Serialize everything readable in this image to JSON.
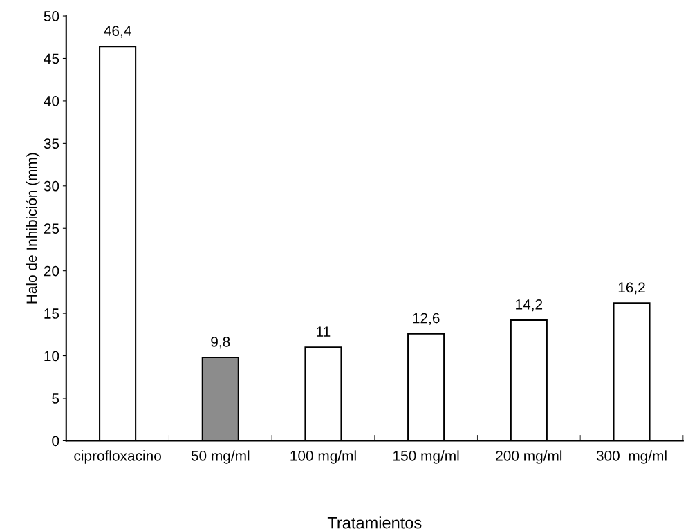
{
  "chart_data": {
    "type": "bar",
    "xlabel": "Tratamientos",
    "ylabel": "Halo de Inhibición (mm)",
    "categories": [
      "ciprofloxacino",
      "50 mg/ml",
      "100 mg/ml",
      "150 mg/ml",
      "200 mg/ml",
      "300  mg/ml"
    ],
    "values": [
      46.4,
      9.8,
      11,
      12.6,
      14.2,
      16.2
    ],
    "value_labels": [
      "46,4",
      "9,8",
      "11",
      "12,6",
      "14,2",
      "16,2"
    ],
    "colors": [
      "#ffffff",
      "#8c8c8c",
      "#ffffff",
      "#ffffff",
      "#ffffff",
      "#ffffff"
    ],
    "ylim": [
      0,
      50
    ],
    "yticks": [
      0,
      5,
      10,
      15,
      20,
      25,
      30,
      35,
      40,
      45,
      50
    ],
    "grid": false,
    "legend": false
  }
}
